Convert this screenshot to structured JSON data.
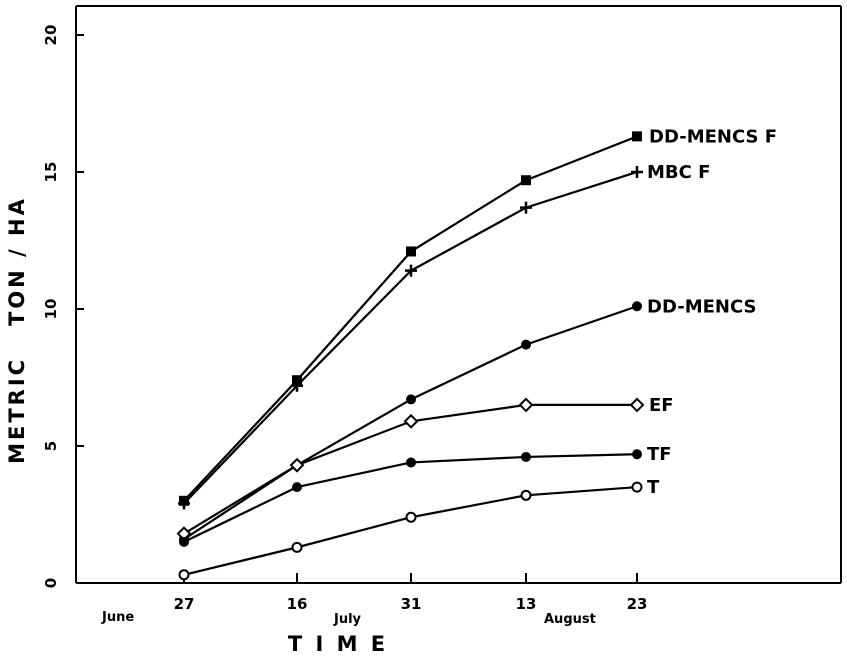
{
  "chart_data": {
    "type": "line",
    "ylabel": "METRIC   TON / HA",
    "xlabel": "T I M E",
    "ylim": [
      0,
      20
    ],
    "yticks": [
      "0",
      "5",
      "10",
      "15",
      "20"
    ],
    "categories": [
      "27",
      "16",
      "31",
      "13",
      "23"
    ],
    "months": [
      "June",
      "July",
      "August"
    ],
    "grid": false,
    "series": [
      {
        "name": "DD-MENCS F",
        "marker": "square-filled",
        "values": [
          3.0,
          7.4,
          12.1,
          14.7,
          16.3
        ]
      },
      {
        "name": "MBC F",
        "marker": "plus",
        "values": [
          2.9,
          7.2,
          11.4,
          13.7,
          15.0
        ]
      },
      {
        "name": "DD-MENCS",
        "marker": "circle-filled",
        "values": [
          1.6,
          4.3,
          6.7,
          8.7,
          10.1
        ]
      },
      {
        "name": "EF",
        "marker": "diamond-open",
        "values": [
          1.8,
          4.3,
          5.9,
          6.5,
          6.5
        ]
      },
      {
        "name": "TF",
        "marker": "circle-filled",
        "values": [
          1.5,
          3.5,
          4.4,
          4.6,
          4.7
        ]
      },
      {
        "name": "T",
        "marker": "circle-open",
        "values": [
          0.3,
          1.3,
          2.4,
          3.2,
          3.5
        ]
      }
    ]
  }
}
